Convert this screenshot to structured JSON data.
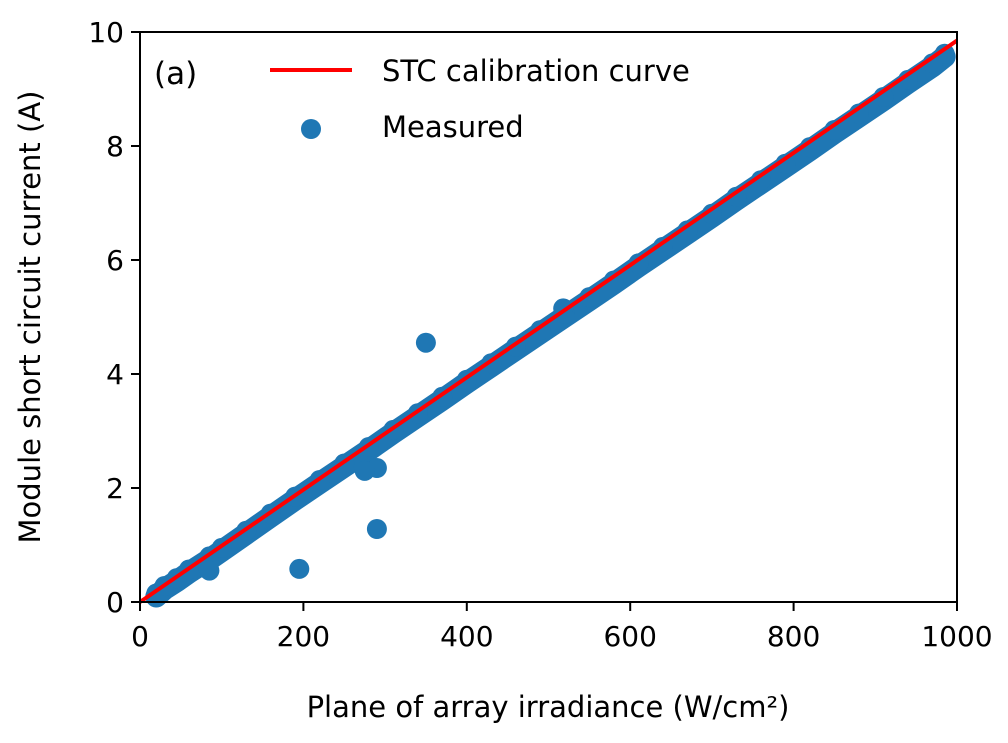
{
  "chart_data": {
    "type": "scatter",
    "panel_label": "(a)",
    "xlabel": "Plane of array irradiance (W/cm²)",
    "ylabel": "Module short circuit current (A)",
    "xlim": [
      0,
      1000
    ],
    "ylim": [
      0,
      10
    ],
    "xticks": [
      0,
      200,
      400,
      600,
      800,
      1000
    ],
    "yticks": [
      0,
      2,
      4,
      6,
      8,
      10
    ],
    "xtick_labels": [
      "0",
      "200",
      "400",
      "600",
      "800",
      "1000"
    ],
    "ytick_labels": [
      "0",
      "2",
      "4",
      "6",
      "8",
      "10"
    ],
    "grid": false,
    "legend_position": "top-left",
    "colors": {
      "measured": "#1f77b4",
      "calibration": "#ff0000"
    },
    "series": [
      {
        "name": "STC calibration curve",
        "kind": "line",
        "x": [
          0,
          1000
        ],
        "y": [
          0,
          9.85
        ]
      },
      {
        "name": "Measured",
        "kind": "scatter",
        "x": [
          20,
          30,
          45,
          60,
          85,
          100,
          130,
          160,
          190,
          220,
          250,
          280,
          310,
          340,
          370,
          400,
          430,
          460,
          490,
          520,
          550,
          580,
          610,
          640,
          670,
          700,
          730,
          760,
          790,
          820,
          850,
          880,
          910,
          940,
          970,
          985,
          195,
          290,
          350,
          85,
          290,
          275,
          518
        ],
        "y": [
          0.15,
          0.28,
          0.42,
          0.57,
          0.8,
          0.95,
          1.25,
          1.55,
          1.85,
          2.14,
          2.43,
          2.72,
          3.02,
          3.31,
          3.6,
          3.9,
          4.19,
          4.48,
          4.77,
          5.06,
          5.35,
          5.64,
          5.94,
          6.23,
          6.52,
          6.81,
          7.11,
          7.4,
          7.69,
          7.98,
          8.28,
          8.57,
          8.86,
          9.16,
          9.45,
          9.62,
          0.58,
          1.28,
          4.55,
          0.55,
          2.35,
          2.3,
          5.15
        ]
      }
    ]
  }
}
